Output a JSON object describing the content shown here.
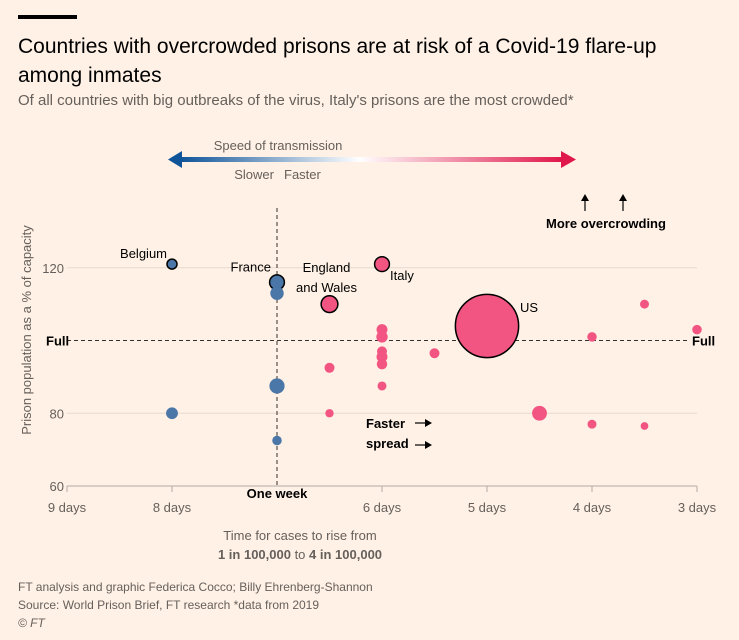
{
  "header": {
    "title": "Countries with overcrowded prisons are at risk of a Covid-19 flare-up among inmates",
    "subtitle": "Of all countries with big outbreaks of the virus, Italy's prisons are the most crowded*"
  },
  "legend": {
    "title": "Speed of transmission",
    "slower": "Slower",
    "faster": "Faster",
    "more_overcrowding": "More overcrowding",
    "faster_spread_1": "Faster",
    "faster_spread_2": "spread",
    "slow_color": "#0f5499",
    "fast_color": "#e0174a"
  },
  "footer": {
    "credit": "FT analysis and graphic Federica Cocco; Billy Ehrenberg-Shannon",
    "source": "Source: World Prison Brief, FT research  *data from 2019",
    "logo": "© FT"
  },
  "chart_data": {
    "type": "scatter",
    "title": "Countries with overcrowded prisons are at risk of a Covid-19 flare-up among inmates",
    "ylabel": "Prison population as a % of capacity",
    "xlabel_line1": "Time for cases to rise from",
    "xlabel_line2_a": "1 in 100,000",
    "xlabel_line2_b": " to ",
    "xlabel_line2_c": "4 in 100,000",
    "x_ticks": [
      {
        "value": 9,
        "label": "9 days"
      },
      {
        "value": 8,
        "label": "8 days"
      },
      {
        "value": 6,
        "label": "6 days"
      },
      {
        "value": 5,
        "label": "5 days"
      },
      {
        "value": 4,
        "label": "4 days"
      },
      {
        "value": 3,
        "label": "3 days"
      }
    ],
    "y_ticks": [
      60,
      80,
      120
    ],
    "xlim": [
      9,
      3
    ],
    "ylim": [
      60,
      140
    ],
    "full_line": {
      "value": 100,
      "label_left": "Full",
      "label_right": "Full"
    },
    "week_line": {
      "value": 7,
      "label": "One week"
    },
    "points": [
      {
        "name": "Belgium",
        "x": 8.0,
        "y": 121,
        "size": 1,
        "outlined": true,
        "label": "Belgium"
      },
      {
        "name": "France",
        "x": 7.0,
        "y": 116,
        "size": 2.2,
        "outlined": true,
        "label": "France"
      },
      {
        "name": "",
        "x": 7.0,
        "y": 113,
        "size": 1.8,
        "outlined": false
      },
      {
        "name": "England and Wales",
        "x": 6.5,
        "y": 110,
        "size": 2.8,
        "outlined": true,
        "label_1": "England",
        "label_2": "and Wales"
      },
      {
        "name": "Italy",
        "x": 6.0,
        "y": 121,
        "size": 2.2,
        "outlined": true,
        "label": "Italy"
      },
      {
        "name": "US",
        "x": 5.0,
        "y": 104,
        "size": 40,
        "outlined": true,
        "label": "US"
      },
      {
        "name": "",
        "x": 5.0,
        "y": 98,
        "size": 1.4,
        "outlined": false
      },
      {
        "name": "",
        "x": 3.5,
        "y": 110,
        "size": 0.8,
        "outlined": false
      },
      {
        "name": "",
        "x": 4.0,
        "y": 101,
        "size": 0.9,
        "outlined": false
      },
      {
        "name": "",
        "x": 3.0,
        "y": 103,
        "size": 0.9,
        "outlined": false
      },
      {
        "name": "",
        "x": 6.0,
        "y": 103,
        "size": 1.2,
        "outlined": false
      },
      {
        "name": "",
        "x": 6.0,
        "y": 101,
        "size": 1.3,
        "outlined": false
      },
      {
        "name": "",
        "x": 6.0,
        "y": 97,
        "size": 1.0,
        "outlined": false
      },
      {
        "name": "",
        "x": 6.0,
        "y": 95.5,
        "size": 1.2,
        "outlined": false
      },
      {
        "name": "",
        "x": 6.0,
        "y": 93.5,
        "size": 1.1,
        "outlined": false
      },
      {
        "name": "",
        "x": 5.5,
        "y": 96.5,
        "size": 1.0,
        "outlined": false
      },
      {
        "name": "",
        "x": 6.5,
        "y": 92.5,
        "size": 1.0,
        "outlined": false
      },
      {
        "name": "",
        "x": 6.0,
        "y": 87.5,
        "size": 0.8,
        "outlined": false
      },
      {
        "name": "",
        "x": 7.0,
        "y": 87.5,
        "size": 2.3,
        "outlined": false
      },
      {
        "name": "",
        "x": 8.0,
        "y": 80,
        "size": 1.4,
        "outlined": false
      },
      {
        "name": "",
        "x": 6.5,
        "y": 80,
        "size": 0.7,
        "outlined": false
      },
      {
        "name": "",
        "x": 4.5,
        "y": 80,
        "size": 2.2,
        "outlined": false
      },
      {
        "name": "",
        "x": 4.0,
        "y": 77,
        "size": 0.8,
        "outlined": false
      },
      {
        "name": "",
        "x": 3.5,
        "y": 76.5,
        "size": 0.6,
        "outlined": false
      },
      {
        "name": "",
        "x": 7.0,
        "y": 72.5,
        "size": 0.9,
        "outlined": false
      }
    ]
  }
}
